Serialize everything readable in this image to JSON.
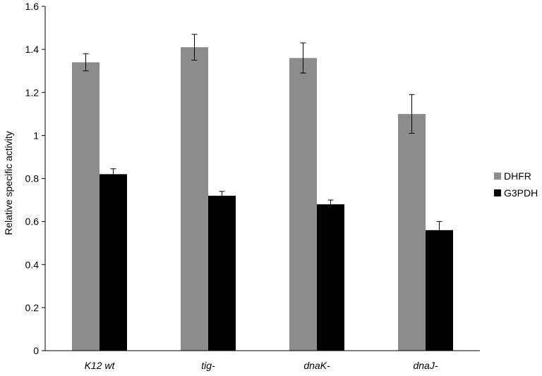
{
  "chart_data": {
    "type": "bar",
    "categories": [
      "K12 wt",
      "tig-",
      "dnaK-",
      "dnaJ-"
    ],
    "series": [
      {
        "name": "DHFR",
        "color": "#8c8c8c",
        "values": [
          1.34,
          1.41,
          1.36,
          1.1
        ],
        "errors": [
          0.04,
          0.06,
          0.07,
          0.09
        ]
      },
      {
        "name": "G3PDH",
        "color": "#000000",
        "values": [
          0.82,
          0.72,
          0.68,
          0.56
        ],
        "errors": [
          0.025,
          0.02,
          0.02,
          0.04
        ]
      }
    ],
    "y_ticks": [
      "0",
      "0.2",
      "0.4",
      "0.6",
      "0.8",
      "1",
      "1.2",
      "1.4",
      "1.6"
    ],
    "ylim": [
      0,
      1.6
    ],
    "ylabel": "Relative specific activity",
    "xlabel": "",
    "grid": false,
    "legend_position": "right"
  }
}
